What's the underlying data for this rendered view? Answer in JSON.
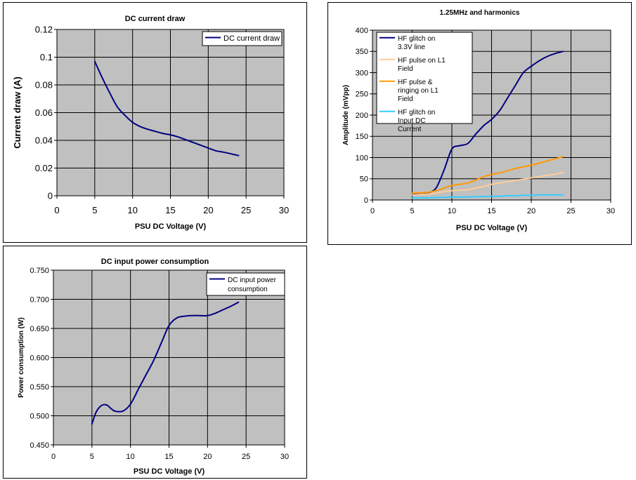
{
  "chart_data": [
    {
      "type": "line",
      "title": "DC current draw",
      "xlabel": "PSU DC Voltage (V)",
      "ylabel": "Current draw (A)",
      "xlim": [
        0,
        30
      ],
      "ylim": [
        0,
        0.12
      ],
      "xticks": [
        "0",
        "5",
        "10",
        "15",
        "20",
        "25",
        "30"
      ],
      "yticks": [
        "0",
        "0.02",
        "0.04",
        "0.06",
        "0.08",
        "0.1",
        "0.12"
      ],
      "grid": true,
      "plot_background": "#c0c0c0",
      "legend_position": "top-right",
      "series": [
        {
          "name": "DC current draw",
          "color": "#000080",
          "x": [
            5,
            6,
            7,
            8,
            9,
            10,
            11,
            12,
            13,
            14,
            15,
            16,
            17,
            18,
            19,
            20,
            21,
            22,
            23,
            24
          ],
          "y": [
            0.097,
            0.085,
            0.074,
            0.064,
            0.058,
            0.053,
            0.05,
            0.048,
            0.0465,
            0.045,
            0.044,
            0.0425,
            0.0405,
            0.0385,
            0.0365,
            0.0345,
            0.0325,
            0.0315,
            0.0303,
            0.029
          ]
        }
      ]
    },
    {
      "type": "line",
      "title": "1.25MHz and harmonics",
      "xlabel": "PSU DC Voltage (V)",
      "ylabel": "Amplitude (mVpp)",
      "xlim": [
        0,
        30
      ],
      "ylim": [
        0,
        400
      ],
      "xticks": [
        "0",
        "5",
        "10",
        "15",
        "20",
        "25",
        "30"
      ],
      "yticks": [
        "0",
        "50",
        "100",
        "150",
        "200",
        "250",
        "300",
        "350",
        "400"
      ],
      "grid": true,
      "plot_background": "#c0c0c0",
      "legend_position": "top-left",
      "series": [
        {
          "name": "HF glitch on 3.3V line",
          "color": "#000080",
          "x": [
            5,
            6,
            7,
            8,
            9,
            10,
            11,
            12,
            13,
            14,
            15,
            16,
            17,
            18,
            19,
            20,
            21,
            22,
            23,
            24
          ],
          "y": [
            15,
            16,
            17,
            28,
            70,
            120,
            128,
            133,
            155,
            175,
            190,
            210,
            240,
            270,
            300,
            315,
            328,
            338,
            345,
            350
          ]
        },
        {
          "name": "HF pulse on L1 Field",
          "color": "#ffcc99",
          "x": [
            5,
            6,
            7,
            8,
            9,
            10,
            11,
            12,
            13,
            14,
            15,
            16,
            17,
            18,
            19,
            20,
            21,
            22,
            23,
            24
          ],
          "y": [
            12,
            13,
            14,
            16,
            20,
            22,
            23,
            24,
            28,
            32,
            37,
            40,
            43,
            46,
            49,
            52,
            55,
            58,
            61,
            65
          ]
        },
        {
          "name": "HF pulse & ringing on L1 Field",
          "color": "#ff9900",
          "x": [
            5,
            6,
            7,
            8,
            9,
            10,
            11,
            12,
            13,
            14,
            15,
            16,
            17,
            18,
            19,
            20,
            21,
            22,
            23,
            24
          ],
          "y": [
            16,
            17,
            18,
            22,
            28,
            34,
            37,
            40,
            47,
            55,
            60,
            64,
            69,
            74,
            78,
            82,
            87,
            92,
            97,
            102
          ]
        },
        {
          "name": "HF glitch on Input DC Current",
          "color": "#33ccff",
          "x": [
            5,
            6,
            7,
            8,
            9,
            10,
            11,
            12,
            13,
            14,
            15,
            16,
            17,
            18,
            19,
            20,
            21,
            22,
            23,
            24
          ],
          "y": [
            5,
            5,
            5,
            6,
            6,
            7,
            7,
            7,
            8,
            8,
            9,
            9,
            10,
            10,
            11,
            11,
            12,
            12,
            12,
            12
          ]
        }
      ]
    },
    {
      "type": "line",
      "title": "DC input power consumption",
      "xlabel": "PSU DC Voltage (V)",
      "ylabel": "Power consumption (W)",
      "xlim": [
        0,
        30
      ],
      "ylim": [
        0.45,
        0.75
      ],
      "xticks": [
        "0",
        "5",
        "10",
        "15",
        "20",
        "25",
        "30"
      ],
      "yticks": [
        "0.450",
        "0.500",
        "0.550",
        "0.600",
        "0.650",
        "0.700",
        "0.750"
      ],
      "grid": true,
      "plot_background": "#c0c0c0",
      "legend_position": "top-right",
      "series": [
        {
          "name": "DC input power consumption",
          "color": "#000080",
          "x": [
            5,
            5.5,
            6,
            6.5,
            7,
            7.5,
            8,
            9,
            10,
            11,
            12,
            13,
            14,
            15,
            16,
            17,
            18,
            19,
            20,
            21,
            22,
            23,
            24
          ],
          "y": [
            0.486,
            0.505,
            0.515,
            0.519,
            0.518,
            0.512,
            0.508,
            0.508,
            0.52,
            0.545,
            0.57,
            0.595,
            0.625,
            0.655,
            0.668,
            0.671,
            0.672,
            0.672,
            0.672,
            0.676,
            0.682,
            0.688,
            0.695
          ]
        }
      ]
    }
  ]
}
